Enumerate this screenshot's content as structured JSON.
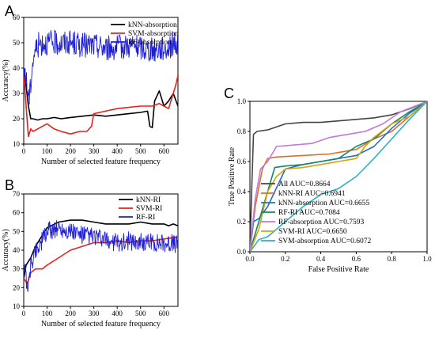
{
  "chart_data": [
    {
      "panel": "A",
      "type": "line",
      "xlabel": "Number of selected feature frequency",
      "ylabel": "Accuracy(%)",
      "xlim": [
        0,
        660
      ],
      "ylim": [
        10,
        60
      ],
      "xticks": [
        "0",
        "100",
        "200",
        "300",
        "400",
        "500",
        "600"
      ],
      "yticks": [
        "10",
        "20",
        "30",
        "40",
        "50",
        "60"
      ],
      "legend": "top-right",
      "series": [
        {
          "name": "kNN-absorption",
          "color": "#000000",
          "x": [
            0,
            10,
            20,
            30,
            40,
            60,
            80,
            100,
            130,
            160,
            200,
            250,
            300,
            350,
            400,
            450,
            500,
            530,
            540,
            550,
            560,
            580,
            600,
            620,
            640,
            660
          ],
          "y": [
            40,
            33,
            25,
            20,
            20,
            19.5,
            20,
            20,
            20.5,
            20,
            20.5,
            21,
            21.5,
            21,
            21.5,
            22,
            22.5,
            23,
            17,
            16.5,
            27,
            31,
            25,
            27,
            30,
            25
          ]
        },
        {
          "name": "SVM-absorption",
          "color": "#e8211f",
          "x": [
            0,
            10,
            20,
            30,
            40,
            60,
            80,
            100,
            130,
            160,
            200,
            240,
            270,
            290,
            300,
            350,
            400,
            450,
            500,
            550,
            580,
            600,
            620,
            640,
            650,
            660
          ],
          "y": [
            38,
            25,
            13,
            16,
            15,
            16,
            17,
            18,
            16,
            15,
            14,
            15,
            15,
            17,
            22,
            23,
            24,
            24.5,
            25,
            25,
            26,
            25,
            24,
            30,
            33,
            37
          ]
        },
        {
          "name": "RF-absorption",
          "color": "#1f1fd6",
          "x": [
            0,
            5,
            15,
            25,
            35,
            45,
            60,
            80,
            100,
            150,
            200,
            250,
            300,
            350,
            400,
            450,
            500,
            550,
            600,
            620,
            640,
            660
          ],
          "y": [
            36,
            40,
            32,
            28,
            40,
            46,
            49,
            50,
            50,
            50,
            50,
            49,
            49,
            48,
            48,
            49,
            48,
            47,
            48,
            48,
            50,
            49
          ],
          "noise": 5
        }
      ]
    },
    {
      "panel": "B",
      "type": "line",
      "xlabel": "Number of selected feature frequency",
      "ylabel": "Accuracy(%)",
      "xlim": [
        0,
        660
      ],
      "ylim": [
        10,
        70
      ],
      "xticks": [
        "0",
        "100",
        "200",
        "300",
        "400",
        "500",
        "600"
      ],
      "yticks": [
        "10",
        "20",
        "30",
        "40",
        "50",
        "60",
        "70"
      ],
      "legend": "top-right",
      "series": [
        {
          "name": "kNN-RI",
          "color": "#000000",
          "x": [
            0,
            10,
            30,
            50,
            80,
            100,
            150,
            200,
            250,
            300,
            350,
            400,
            450,
            500,
            550,
            600,
            620,
            640,
            660
          ],
          "y": [
            25,
            32,
            36,
            42,
            48,
            52,
            55,
            56,
            56,
            55,
            54,
            54,
            54,
            55,
            54,
            54,
            53,
            54,
            53
          ]
        },
        {
          "name": "SVM-RI",
          "color": "#e8211f",
          "x": [
            0,
            15,
            30,
            50,
            80,
            100,
            150,
            200,
            250,
            300,
            350,
            400,
            450,
            500,
            550,
            600,
            660
          ],
          "y": [
            25,
            22,
            28,
            30,
            30,
            32,
            36,
            40,
            42,
            44,
            44,
            45,
            44,
            45,
            45,
            46,
            47
          ]
        },
        {
          "name": "RF-RI",
          "color": "#1f1fd6",
          "x": [
            0,
            10,
            20,
            30,
            50,
            80,
            100,
            150,
            200,
            250,
            300,
            350,
            400,
            450,
            500,
            550,
            600,
            660
          ],
          "y": [
            35,
            25,
            20,
            32,
            40,
            45,
            50,
            52,
            50,
            48,
            47,
            45,
            44,
            45,
            44,
            44,
            44,
            43
          ],
          "noise": 5
        }
      ]
    },
    {
      "panel": "C",
      "type": "line",
      "xlabel": "False Positive Rate",
      "ylabel": "True Positive Rate",
      "xlim": [
        0.0,
        1.0
      ],
      "ylim": [
        0.0,
        1.0
      ],
      "xticks": [
        "0.0",
        "0.2",
        "0.4",
        "0.6",
        "0.8",
        "1.0"
      ],
      "yticks": [
        "0.0",
        "0.2",
        "0.4",
        "0.6",
        "0.8",
        "1.0"
      ],
      "legend": "bottom-right",
      "series": [
        {
          "name": "All AUC=0.8664",
          "color": "#444444",
          "x": [
            0,
            0.01,
            0.02,
            0.04,
            0.1,
            0.2,
            0.3,
            0.4,
            0.5,
            0.6,
            0.7,
            0.8,
            0.9,
            1.0
          ],
          "y": [
            0,
            0.4,
            0.78,
            0.8,
            0.81,
            0.85,
            0.86,
            0.86,
            0.87,
            0.88,
            0.89,
            0.91,
            0.95,
            1.0
          ]
        },
        {
          "name": "kNN-RI AUC=0.6941",
          "color": "#e36c2b",
          "x": [
            0,
            0.03,
            0.07,
            0.1,
            0.15,
            0.3,
            0.45,
            0.5,
            0.6,
            0.7,
            0.8,
            0.9,
            1.0
          ],
          "y": [
            0,
            0.3,
            0.55,
            0.62,
            0.63,
            0.64,
            0.65,
            0.66,
            0.68,
            0.75,
            0.8,
            0.9,
            1.0
          ]
        },
        {
          "name": "kNN-absorption AUC=0.6655",
          "color": "#1f6fd1",
          "x": [
            0,
            0.02,
            0.05,
            0.1,
            0.2,
            0.3,
            0.4,
            0.5,
            0.6,
            0.7,
            0.8,
            0.9,
            1.0
          ],
          "y": [
            0,
            0.2,
            0.22,
            0.3,
            0.55,
            0.58,
            0.6,
            0.62,
            0.64,
            0.7,
            0.82,
            0.92,
            1.0
          ]
        },
        {
          "name": "RF-RI AUC=0.7084",
          "color": "#16876a",
          "x": [
            0,
            0.05,
            0.1,
            0.14,
            0.2,
            0.3,
            0.4,
            0.5,
            0.6,
            0.7,
            0.8,
            0.9,
            1.0
          ],
          "y": [
            0,
            0.2,
            0.4,
            0.56,
            0.57,
            0.58,
            0.6,
            0.62,
            0.7,
            0.75,
            0.85,
            0.93,
            1.0
          ]
        },
        {
          "name": "RF-absorption AUC=0.7593",
          "color": "#c07ad8",
          "x": [
            0,
            0.03,
            0.06,
            0.1,
            0.15,
            0.25,
            0.35,
            0.45,
            0.55,
            0.65,
            0.75,
            0.85,
            1.0
          ],
          "y": [
            0,
            0.35,
            0.55,
            0.6,
            0.7,
            0.71,
            0.72,
            0.76,
            0.78,
            0.8,
            0.85,
            0.93,
            1.0
          ]
        },
        {
          "name": "SVM-RI AUC=0.6650",
          "color": "#d4a30b",
          "x": [
            0,
            0.05,
            0.1,
            0.15,
            0.2,
            0.3,
            0.4,
            0.5,
            0.6,
            0.65,
            0.7,
            0.8,
            0.9,
            1.0
          ],
          "y": [
            0,
            0.15,
            0.4,
            0.5,
            0.55,
            0.56,
            0.58,
            0.6,
            0.62,
            0.7,
            0.76,
            0.85,
            0.9,
            1.0
          ]
        },
        {
          "name": "SVM-absorption AUC=0.6072",
          "color": "#2ab3c5",
          "x": [
            0,
            0.05,
            0.1,
            0.2,
            0.3,
            0.4,
            0.5,
            0.6,
            0.7,
            0.8,
            0.9,
            1.0
          ],
          "y": [
            0,
            0.08,
            0.1,
            0.2,
            0.3,
            0.38,
            0.42,
            0.5,
            0.62,
            0.75,
            0.88,
            1.0
          ]
        }
      ]
    }
  ]
}
